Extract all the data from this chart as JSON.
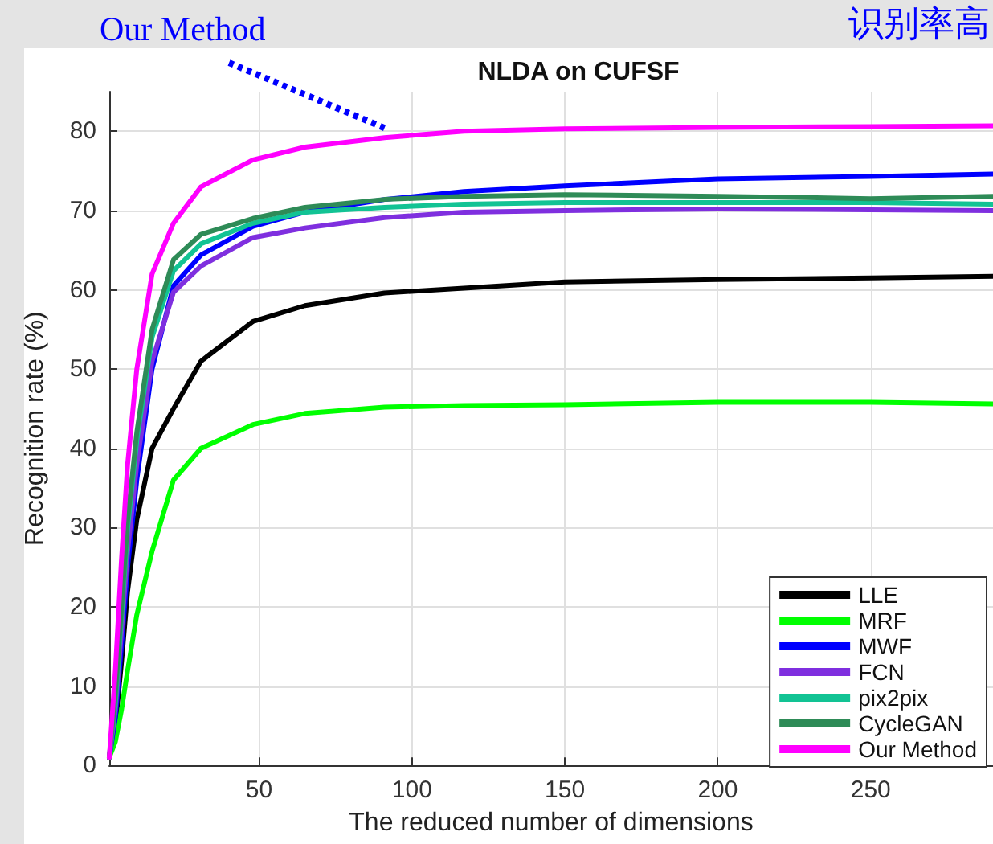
{
  "chart_data": {
    "type": "line",
    "title": "NLDA on CUFSF",
    "xlabel": "The reduced number of dimensions",
    "ylabel": "Recognition rate (%)",
    "x": [
      1,
      3,
      5,
      7,
      10,
      15,
      22,
      31,
      48,
      65,
      91,
      117,
      150,
      200,
      250,
      290
    ],
    "xlim": [
      1,
      290
    ],
    "xticks": [
      50,
      100,
      150,
      200,
      250
    ],
    "ylim": [
      0,
      85
    ],
    "yticks": [
      0,
      10,
      20,
      30,
      40,
      50,
      60,
      70,
      80
    ],
    "grid": true,
    "legend": "bottom right",
    "line_style": "solid",
    "marker": "none",
    "annotations": [
      {
        "text": "Our Method",
        "x": 91,
        "y": 79.2
      },
      "识别率高"
    ],
    "series": [
      {
        "name": "LLE",
        "color": "#000000",
        "values": [
          1,
          5,
          13,
          22,
          31,
          40,
          45,
          51,
          56,
          58,
          59.6,
          60.2,
          61,
          61.3,
          61.5,
          61.7
        ]
      },
      {
        "name": "MRF",
        "color": "#00ff00",
        "values": [
          1,
          3,
          7,
          12,
          19,
          27,
          36,
          40,
          43,
          44.4,
          45.2,
          45.4,
          45.5,
          45.8,
          45.8,
          45.6
        ]
      },
      {
        "name": "MWF",
        "color": "#0000ff",
        "values": [
          1,
          6,
          15,
          25,
          36,
          50,
          60.5,
          64.4,
          68,
          69.8,
          71.4,
          72.4,
          73.1,
          74,
          74.3,
          74.6
        ]
      },
      {
        "name": "FCN",
        "color": "#7f2fdf",
        "values": [
          1,
          7,
          17,
          27,
          38,
          51,
          59.7,
          63,
          66.6,
          67.8,
          69.1,
          69.8,
          70,
          70.2,
          70.1,
          70
        ]
      },
      {
        "name": "pix2pix",
        "color": "#12c394",
        "values": [
          1,
          8,
          19,
          30,
          41,
          54,
          62.4,
          65.8,
          68.4,
          69.8,
          70.4,
          70.8,
          71,
          71,
          71,
          70.8
        ]
      },
      {
        "name": "CycleGAN",
        "color": "#2e8b57",
        "values": [
          1,
          9,
          20,
          31,
          42,
          55,
          63.8,
          67,
          69,
          70.4,
          71.4,
          71.8,
          72,
          71.8,
          71.5,
          71.8
        ]
      },
      {
        "name": "Our Method",
        "color": "#ff00ff",
        "values": [
          1,
          12,
          26,
          38,
          50,
          62,
          68.4,
          73,
          76.4,
          78,
          79.2,
          80,
          80.3,
          80.5,
          80.6,
          80.7
        ]
      }
    ]
  }
}
